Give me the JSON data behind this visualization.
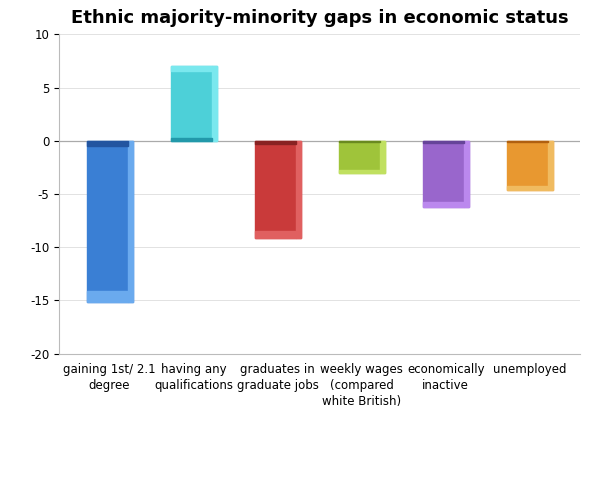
{
  "categories": [
    "gaining 1st/ 2.1\ndegree",
    "having any\nqualifications",
    "graduates in\ngraduate jobs",
    "weekly wages\n(compared\nwhite British)",
    "economically\ninactive",
    "unemployed"
  ],
  "values": [
    -15.2,
    7.0,
    -9.1,
    -3.0,
    -6.2,
    -4.6
  ],
  "colors_main": [
    "#3a7fd4",
    "#4dd0d8",
    "#c93a3a",
    "#9fc43a",
    "#9966cc",
    "#e89830"
  ],
  "colors_light": [
    "#6aaaee",
    "#7ae8ee",
    "#e06060",
    "#c0e060",
    "#bb88ee",
    "#f0bb60"
  ],
  "colors_dark": [
    "#2255a0",
    "#2299aa",
    "#882222",
    "#6a8a20",
    "#664499",
    "#b06010"
  ],
  "title": "Ethnic majority-minority gaps in economic status",
  "ylim": [
    -20,
    10
  ],
  "yticks": [
    -20,
    -15,
    -10,
    -5,
    0,
    5,
    10
  ],
  "background_color": "#ffffff",
  "title_fontsize": 13,
  "tick_fontsize": 8.5,
  "bar_width": 0.55,
  "figsize": [
    5.92,
    4.91
  ],
  "dpi": 100
}
